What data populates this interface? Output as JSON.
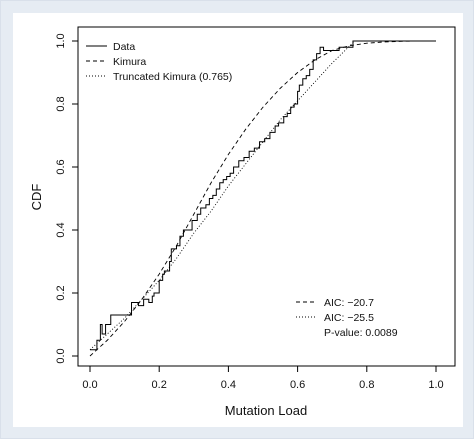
{
  "chart_data": {
    "type": "line",
    "xlabel": "Mutation Load",
    "ylabel": "CDF",
    "xlim": [
      0.0,
      1.0
    ],
    "ylim": [
      0.0,
      1.0
    ],
    "x_ticks": [
      "0.0",
      "0.2",
      "0.4",
      "0.6",
      "0.8",
      "1.0"
    ],
    "y_ticks": [
      "0.0",
      "0.2",
      "0.4",
      "0.6",
      "0.8",
      "1.0"
    ],
    "grid": false,
    "legend_position": "top-left",
    "series": [
      {
        "name": "Data",
        "style": "solid",
        "type": "step",
        "x": [
          0.0,
          0.02,
          0.03,
          0.035,
          0.045,
          0.06,
          0.11,
          0.12,
          0.14,
          0.155,
          0.17,
          0.18,
          0.185,
          0.2,
          0.21,
          0.215,
          0.23,
          0.235,
          0.25,
          0.26,
          0.27,
          0.28,
          0.295,
          0.31,
          0.32,
          0.335,
          0.345,
          0.355,
          0.365,
          0.375,
          0.385,
          0.395,
          0.405,
          0.415,
          0.43,
          0.445,
          0.46,
          0.475,
          0.49,
          0.505,
          0.52,
          0.535,
          0.545,
          0.56,
          0.57,
          0.58,
          0.59,
          0.6,
          0.605,
          0.615,
          0.625,
          0.635,
          0.645,
          0.655,
          0.665,
          0.675,
          0.69,
          0.72,
          0.76,
          0.8,
          1.0
        ],
        "y": [
          0.02,
          0.05,
          0.1,
          0.07,
          0.1,
          0.13,
          0.13,
          0.17,
          0.16,
          0.18,
          0.17,
          0.19,
          0.2,
          0.24,
          0.26,
          0.27,
          0.3,
          0.34,
          0.35,
          0.38,
          0.4,
          0.4,
          0.43,
          0.45,
          0.47,
          0.48,
          0.5,
          0.51,
          0.53,
          0.55,
          0.56,
          0.57,
          0.58,
          0.6,
          0.62,
          0.63,
          0.65,
          0.66,
          0.68,
          0.69,
          0.71,
          0.73,
          0.74,
          0.76,
          0.77,
          0.79,
          0.8,
          0.84,
          0.86,
          0.88,
          0.89,
          0.91,
          0.94,
          0.96,
          0.98,
          0.97,
          0.97,
          0.98,
          1.0,
          1.0,
          1.0
        ]
      },
      {
        "name": "Kimura",
        "style": "dashed",
        "x": [
          0.0,
          0.05,
          0.1,
          0.15,
          0.2,
          0.25,
          0.3,
          0.35,
          0.4,
          0.45,
          0.5,
          0.55,
          0.6,
          0.65,
          0.7,
          0.75,
          0.8,
          0.85,
          0.9,
          0.95,
          1.0
        ],
        "y": [
          0.0,
          0.05,
          0.11,
          0.18,
          0.26,
          0.35,
          0.45,
          0.55,
          0.64,
          0.72,
          0.79,
          0.85,
          0.9,
          0.94,
          0.97,
          0.985,
          0.993,
          0.997,
          0.999,
          1.0,
          1.0
        ]
      },
      {
        "name": "Truncated Kimura (0.765)",
        "style": "dotted",
        "x": [
          0.0,
          0.05,
          0.1,
          0.15,
          0.2,
          0.25,
          0.3,
          0.35,
          0.4,
          0.45,
          0.5,
          0.55,
          0.6,
          0.65,
          0.7,
          0.765,
          0.8,
          0.9,
          1.0
        ],
        "y": [
          0.02,
          0.07,
          0.12,
          0.18,
          0.24,
          0.31,
          0.39,
          0.46,
          0.54,
          0.61,
          0.68,
          0.75,
          0.81,
          0.87,
          0.93,
          1.0,
          1.0,
          1.0,
          1.0
        ]
      }
    ],
    "stats": {
      "kimura_aic": "AIC: −20.7",
      "truncated_aic": "AIC: −25.5",
      "p_value": "P-value: 0.0089"
    }
  }
}
